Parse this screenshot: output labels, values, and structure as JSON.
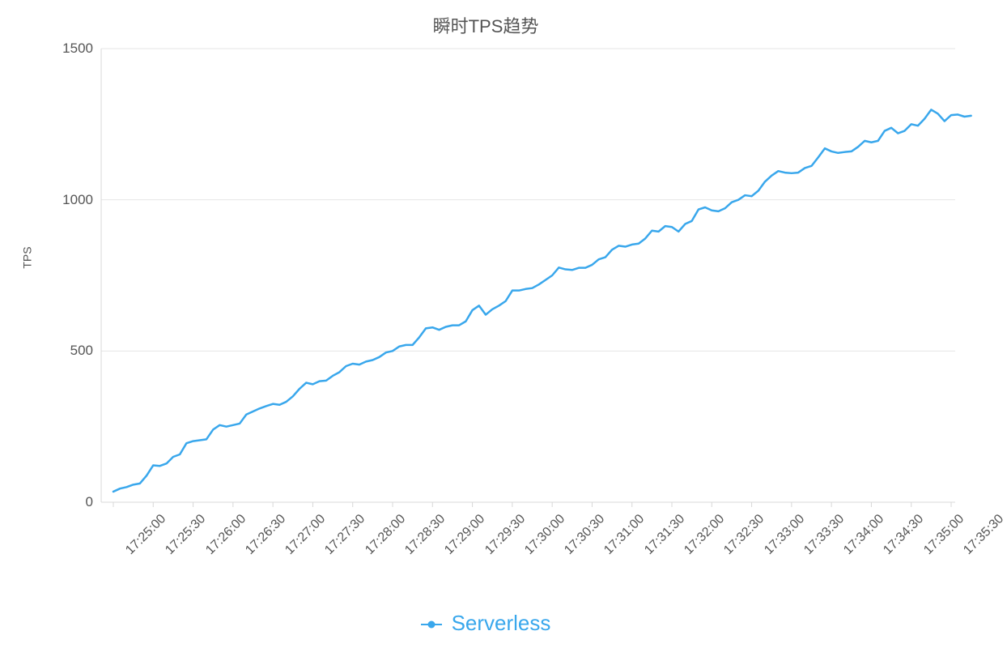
{
  "chart": {
    "type": "line",
    "title": "瞬时TPS趋势",
    "title_fontsize": 22,
    "title_color": "#555555",
    "y_axis_title": "TPS",
    "y_axis_title_fontsize": 14,
    "background_color": "#ffffff",
    "grid_color": "#e6e6e6",
    "axis_color": "#d8d8d8",
    "tick_label_color": "#555555",
    "tick_label_fontsize": 16,
    "line_width": 2.5,
    "ylim": [
      0,
      1500
    ],
    "y_ticks": [
      0,
      500,
      1000,
      1500
    ],
    "x_ticks": [
      "17:25:00",
      "17:25:30",
      "17:26:00",
      "17:26:30",
      "17:27:00",
      "17:27:30",
      "17:28:00",
      "17:28:30",
      "17:29:00",
      "17:29:30",
      "17:30:00",
      "17:30:30",
      "17:31:00",
      "17:31:30",
      "17:32:00",
      "17:32:30",
      "17:33:00",
      "17:33:30",
      "17:34:00",
      "17:34:30",
      "17:35:00",
      "17:35:30"
    ],
    "x_tick_interval_seconds": 30,
    "series": [
      {
        "name": "Serverless",
        "color": "#39a7ec",
        "data": [
          {
            "t": 0,
            "v": 35
          },
          {
            "t": 5,
            "v": 45
          },
          {
            "t": 10,
            "v": 50
          },
          {
            "t": 15,
            "v": 58
          },
          {
            "t": 20,
            "v": 62
          },
          {
            "t": 25,
            "v": 88
          },
          {
            "t": 30,
            "v": 122
          },
          {
            "t": 35,
            "v": 120
          },
          {
            "t": 40,
            "v": 128
          },
          {
            "t": 45,
            "v": 150
          },
          {
            "t": 50,
            "v": 158
          },
          {
            "t": 55,
            "v": 195
          },
          {
            "t": 60,
            "v": 202
          },
          {
            "t": 65,
            "v": 205
          },
          {
            "t": 70,
            "v": 208
          },
          {
            "t": 75,
            "v": 240
          },
          {
            "t": 80,
            "v": 255
          },
          {
            "t": 85,
            "v": 250
          },
          {
            "t": 90,
            "v": 255
          },
          {
            "t": 95,
            "v": 260
          },
          {
            "t": 100,
            "v": 290
          },
          {
            "t": 105,
            "v": 300
          },
          {
            "t": 110,
            "v": 310
          },
          {
            "t": 115,
            "v": 318
          },
          {
            "t": 120,
            "v": 325
          },
          {
            "t": 125,
            "v": 322
          },
          {
            "t": 130,
            "v": 332
          },
          {
            "t": 135,
            "v": 350
          },
          {
            "t": 140,
            "v": 375
          },
          {
            "t": 145,
            "v": 395
          },
          {
            "t": 150,
            "v": 390
          },
          {
            "t": 155,
            "v": 400
          },
          {
            "t": 160,
            "v": 402
          },
          {
            "t": 165,
            "v": 418
          },
          {
            "t": 170,
            "v": 430
          },
          {
            "t": 175,
            "v": 450
          },
          {
            "t": 180,
            "v": 458
          },
          {
            "t": 185,
            "v": 455
          },
          {
            "t": 190,
            "v": 465
          },
          {
            "t": 195,
            "v": 470
          },
          {
            "t": 200,
            "v": 480
          },
          {
            "t": 205,
            "v": 495
          },
          {
            "t": 210,
            "v": 500
          },
          {
            "t": 215,
            "v": 515
          },
          {
            "t": 220,
            "v": 520
          },
          {
            "t": 225,
            "v": 520
          },
          {
            "t": 230,
            "v": 545
          },
          {
            "t": 235,
            "v": 575
          },
          {
            "t": 240,
            "v": 578
          },
          {
            "t": 245,
            "v": 570
          },
          {
            "t": 250,
            "v": 580
          },
          {
            "t": 255,
            "v": 585
          },
          {
            "t": 260,
            "v": 585
          },
          {
            "t": 265,
            "v": 598
          },
          {
            "t": 270,
            "v": 635
          },
          {
            "t": 275,
            "v": 650
          },
          {
            "t": 280,
            "v": 620
          },
          {
            "t": 285,
            "v": 638
          },
          {
            "t": 290,
            "v": 650
          },
          {
            "t": 295,
            "v": 665
          },
          {
            "t": 300,
            "v": 700
          },
          {
            "t": 305,
            "v": 700
          },
          {
            "t": 310,
            "v": 705
          },
          {
            "t": 315,
            "v": 708
          },
          {
            "t": 320,
            "v": 720
          },
          {
            "t": 325,
            "v": 735
          },
          {
            "t": 330,
            "v": 750
          },
          {
            "t": 335,
            "v": 776
          },
          {
            "t": 340,
            "v": 770
          },
          {
            "t": 345,
            "v": 768
          },
          {
            "t": 350,
            "v": 775
          },
          {
            "t": 355,
            "v": 775
          },
          {
            "t": 360,
            "v": 785
          },
          {
            "t": 365,
            "v": 803
          },
          {
            "t": 370,
            "v": 810
          },
          {
            "t": 375,
            "v": 835
          },
          {
            "t": 380,
            "v": 848
          },
          {
            "t": 385,
            "v": 845
          },
          {
            "t": 390,
            "v": 852
          },
          {
            "t": 395,
            "v": 855
          },
          {
            "t": 400,
            "v": 872
          },
          {
            "t": 405,
            "v": 898
          },
          {
            "t": 410,
            "v": 895
          },
          {
            "t": 415,
            "v": 913
          },
          {
            "t": 420,
            "v": 910
          },
          {
            "t": 425,
            "v": 895
          },
          {
            "t": 430,
            "v": 920
          },
          {
            "t": 435,
            "v": 930
          },
          {
            "t": 440,
            "v": 968
          },
          {
            "t": 445,
            "v": 975
          },
          {
            "t": 450,
            "v": 965
          },
          {
            "t": 455,
            "v": 962
          },
          {
            "t": 460,
            "v": 972
          },
          {
            "t": 465,
            "v": 992
          },
          {
            "t": 470,
            "v": 1000
          },
          {
            "t": 475,
            "v": 1015
          },
          {
            "t": 480,
            "v": 1012
          },
          {
            "t": 485,
            "v": 1030
          },
          {
            "t": 490,
            "v": 1060
          },
          {
            "t": 495,
            "v": 1080
          },
          {
            "t": 500,
            "v": 1095
          },
          {
            "t": 505,
            "v": 1090
          },
          {
            "t": 510,
            "v": 1088
          },
          {
            "t": 515,
            "v": 1090
          },
          {
            "t": 520,
            "v": 1105
          },
          {
            "t": 525,
            "v": 1112
          },
          {
            "t": 530,
            "v": 1140
          },
          {
            "t": 535,
            "v": 1170
          },
          {
            "t": 540,
            "v": 1160
          },
          {
            "t": 545,
            "v": 1155
          },
          {
            "t": 550,
            "v": 1158
          },
          {
            "t": 555,
            "v": 1160
          },
          {
            "t": 560,
            "v": 1175
          },
          {
            "t": 565,
            "v": 1195
          },
          {
            "t": 570,
            "v": 1190
          },
          {
            "t": 575,
            "v": 1195
          },
          {
            "t": 580,
            "v": 1228
          },
          {
            "t": 585,
            "v": 1238
          },
          {
            "t": 590,
            "v": 1220
          },
          {
            "t": 595,
            "v": 1228
          },
          {
            "t": 600,
            "v": 1250
          },
          {
            "t": 605,
            "v": 1245
          },
          {
            "t": 610,
            "v": 1268
          },
          {
            "t": 615,
            "v": 1298
          },
          {
            "t": 620,
            "v": 1285
          },
          {
            "t": 625,
            "v": 1260
          },
          {
            "t": 630,
            "v": 1280
          },
          {
            "t": 635,
            "v": 1282
          },
          {
            "t": 640,
            "v": 1275
          },
          {
            "t": 645,
            "v": 1278
          }
        ]
      }
    ],
    "legend": {
      "label": "Serverless",
      "color": "#39a7ec",
      "fontsize": 26
    }
  }
}
